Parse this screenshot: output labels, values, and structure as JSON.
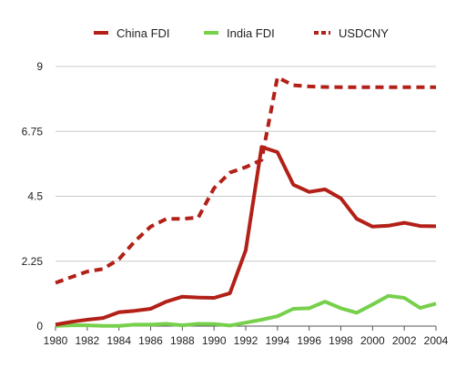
{
  "chart_data": {
    "type": "line",
    "title": "",
    "xlabel": "",
    "ylabel": "",
    "xlim": [
      1980,
      2004
    ],
    "ylim": [
      0,
      9
    ],
    "x_ticks": [
      "1980",
      "1982",
      "1984",
      "1986",
      "1988",
      "1990",
      "1992",
      "1994",
      "1996",
      "1998",
      "2000",
      "2002",
      "2004"
    ],
    "y_ticks": [
      "0",
      "2.25",
      "4.5",
      "6.75",
      "9"
    ],
    "grid": "horizontal",
    "legend_position": "top",
    "x": [
      1980,
      1981,
      1982,
      1983,
      1984,
      1985,
      1986,
      1987,
      1988,
      1989,
      1990,
      1991,
      1992,
      1993,
      1994,
      1995,
      1996,
      1997,
      1998,
      1999,
      2000,
      2001,
      2002,
      2003,
      2004
    ],
    "series": [
      {
        "name": "China FDI",
        "color": "#b22018",
        "style": "solid",
        "values": [
          0.05,
          0.15,
          0.22,
          0.28,
          0.48,
          0.53,
          0.6,
          0.85,
          1.02,
          0.99,
          0.98,
          1.14,
          2.63,
          6.21,
          6.03,
          4.9,
          4.65,
          4.74,
          4.43,
          3.72,
          3.45,
          3.48,
          3.58,
          3.47,
          3.46
        ]
      },
      {
        "name": "India FDI",
        "color": "#77d04c",
        "style": "solid",
        "values": [
          0.01,
          0.03,
          0.03,
          0.01,
          0.01,
          0.05,
          0.05,
          0.08,
          0.03,
          0.08,
          0.07,
          0.02,
          0.12,
          0.22,
          0.34,
          0.6,
          0.62,
          0.85,
          0.62,
          0.46,
          0.75,
          1.05,
          0.98,
          0.63,
          0.78
        ]
      },
      {
        "name": "USDCNY",
        "color": "#b22018",
        "style": "dashed",
        "values": [
          1.5,
          1.7,
          1.89,
          1.98,
          2.32,
          2.94,
          3.45,
          3.72,
          3.72,
          3.76,
          4.78,
          5.32,
          5.51,
          5.76,
          8.62,
          8.35,
          8.31,
          8.29,
          8.28,
          8.28,
          8.28,
          8.28,
          8.28,
          8.28,
          8.28
        ]
      }
    ]
  }
}
